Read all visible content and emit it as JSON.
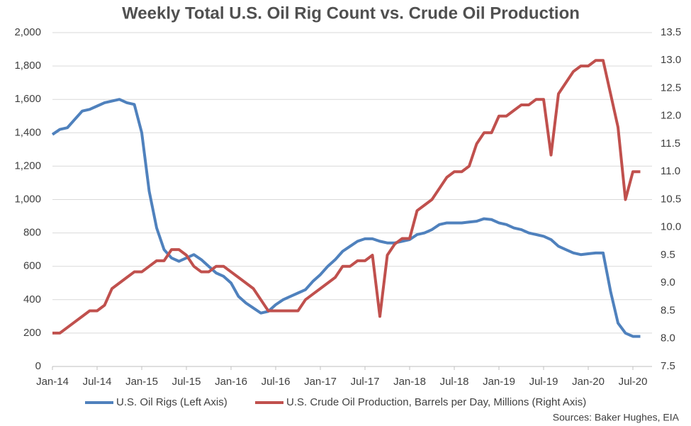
{
  "chart_data": {
    "type": "line",
    "title": "Weekly Total U.S. Oil Rig Count vs. Crude Oil Production",
    "source": "Sources: Baker Hughes, EIA",
    "categories": [
      "Jan-14",
      null,
      null,
      null,
      null,
      null,
      "Jul-14",
      null,
      null,
      null,
      null,
      null,
      "Jan-15",
      null,
      null,
      null,
      null,
      null,
      "Jul-15",
      null,
      null,
      null,
      null,
      null,
      "Jan-16",
      null,
      null,
      null,
      null,
      null,
      "Jul-16",
      null,
      null,
      null,
      null,
      null,
      "Jan-17",
      null,
      null,
      null,
      null,
      null,
      "Jul-17",
      null,
      null,
      null,
      null,
      null,
      "Jan-18",
      null,
      null,
      null,
      null,
      null,
      "Jul-18",
      null,
      null,
      null,
      null,
      null,
      "Jan-19",
      null,
      null,
      null,
      null,
      null,
      "Jul-19",
      null,
      null,
      null,
      null,
      null,
      "Jan-20",
      null,
      null,
      null,
      null,
      null,
      "Jul-20",
      null
    ],
    "series": [
      {
        "name": "U.S. Oil Rigs (Left Axis)",
        "color": "#4f81bd",
        "axis": "y",
        "values": [
          1390,
          1420,
          1430,
          1480,
          1530,
          1540,
          1560,
          1580,
          1590,
          1600,
          1580,
          1570,
          1400,
          1050,
          830,
          700,
          650,
          630,
          650,
          670,
          640,
          600,
          560,
          540,
          500,
          420,
          380,
          350,
          320,
          330,
          370,
          400,
          420,
          440,
          460,
          510,
          550,
          600,
          640,
          690,
          720,
          750,
          765,
          765,
          750,
          740,
          740,
          750,
          760,
          790,
          800,
          820,
          850,
          860,
          860,
          860,
          865,
          870,
          885,
          880,
          860,
          850,
          830,
          820,
          800,
          790,
          780,
          760,
          720,
          700,
          680,
          670,
          675,
          680,
          680,
          450,
          260,
          200,
          180,
          180
        ]
      },
      {
        "name": "U.S. Crude Oil Production, Barrels per Day, Millions (Right Axis)",
        "color": "#c0504d",
        "axis": "y2",
        "values": [
          8.1,
          8.1,
          8.2,
          8.3,
          8.4,
          8.5,
          8.5,
          8.6,
          8.9,
          9.0,
          9.1,
          9.2,
          9.2,
          9.3,
          9.4,
          9.4,
          9.6,
          9.6,
          9.5,
          9.3,
          9.2,
          9.2,
          9.3,
          9.3,
          9.2,
          9.1,
          9.0,
          8.9,
          8.7,
          8.5,
          8.5,
          8.5,
          8.5,
          8.5,
          8.7,
          8.8,
          8.9,
          9.0,
          9.1,
          9.3,
          9.3,
          9.4,
          9.4,
          9.5,
          8.4,
          9.5,
          9.7,
          9.8,
          9.8,
          10.3,
          10.4,
          10.5,
          10.7,
          10.9,
          11.0,
          11.0,
          11.1,
          11.5,
          11.7,
          11.7,
          12.0,
          12.0,
          12.1,
          12.2,
          12.2,
          12.3,
          12.3,
          11.3,
          12.4,
          12.6,
          12.8,
          12.9,
          12.9,
          13.0,
          13.0,
          12.4,
          11.8,
          10.5,
          11.0,
          11.0
        ]
      }
    ],
    "ylim": [
      0,
      2000
    ],
    "yticks": [
      0,
      200,
      400,
      600,
      800,
      {
        "value": 1000,
        "label": "1,000"
      },
      {
        "value": 1200,
        "label": "1,200"
      },
      {
        "value": 1400,
        "label": "1,400"
      },
      {
        "value": 1600,
        "label": "1,600"
      },
      {
        "value": 1800,
        "label": "1,800"
      },
      {
        "value": 2000,
        "label": "2,000"
      }
    ],
    "y2lim": [
      7.5,
      13.5
    ],
    "y2ticks": [
      7.5,
      {
        "value": 8,
        "label": "8.0"
      },
      8.5,
      {
        "value": 9,
        "label": "9.0"
      },
      9.5,
      {
        "value": 10,
        "label": "10.0"
      },
      10.5,
      {
        "value": 11,
        "label": "11.0"
      },
      11.5,
      {
        "value": 12,
        "label": "12.0"
      },
      12.5,
      {
        "value": 13,
        "label": "13.0"
      },
      13.5
    ],
    "grid": true,
    "legend": "bottom"
  }
}
